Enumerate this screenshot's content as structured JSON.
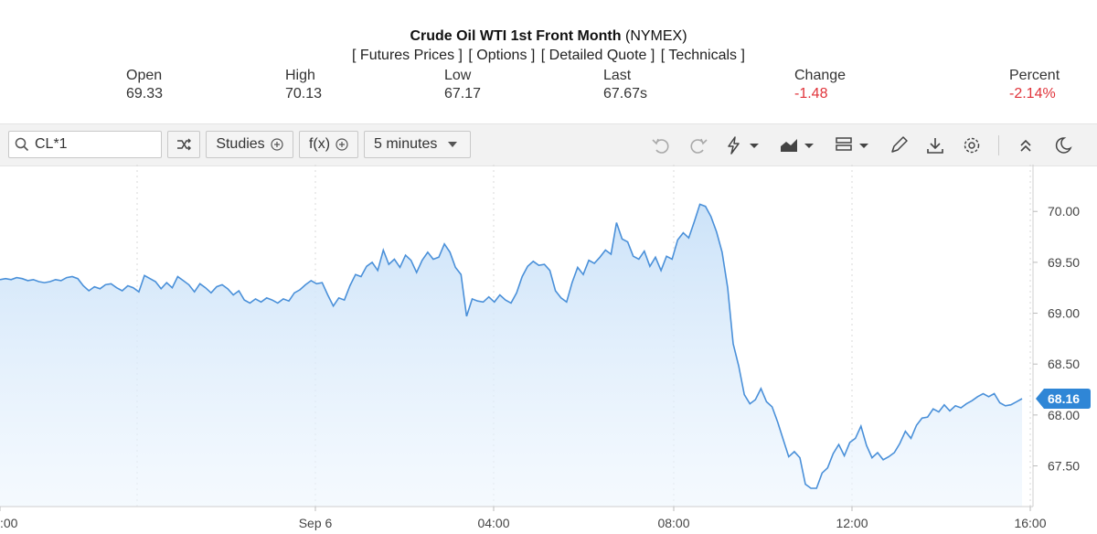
{
  "header": {
    "title_bold": "Crude Oil WTI 1st Front Month",
    "title_exchange": "(NYMEX)",
    "links": [
      "[ Futures Prices ]",
      "[ Options ]",
      "[ Detailed Quote ]",
      "[ Technicals ]"
    ]
  },
  "stats": {
    "open": {
      "label": "Open",
      "value": "69.33"
    },
    "high": {
      "label": "High",
      "value": "70.13"
    },
    "low": {
      "label": "Low",
      "value": "67.17"
    },
    "last": {
      "label": "Last",
      "value": "67.67s"
    },
    "change": {
      "label": "Change",
      "value": "-1.48"
    },
    "percent": {
      "label": "Percent",
      "value": "-2.14%"
    }
  },
  "toolbar": {
    "symbol": "CL*1",
    "studies_label": "Studies",
    "fx_label": "f(x)",
    "interval_label": "5 minutes"
  },
  "colors": {
    "negative": "#e0333a",
    "line": "#4a90d9",
    "badge": "#2f86d6",
    "fill_top": "#c9e1f8"
  },
  "chart_data": {
    "type": "area",
    "x_tick_labels": [
      ":00",
      "Sep 6",
      "04:00",
      "08:00",
      "12:00",
      "16:00"
    ],
    "y_tick_labels": [
      "70.00",
      "69.50",
      "69.00",
      "68.50",
      "68.00",
      "67.50"
    ],
    "ylim": [
      67.1,
      70.3
    ],
    "grid": true,
    "last_value_label": "68.16",
    "series": [
      {
        "y": [
          69.33,
          69.34,
          69.33,
          69.35,
          69.34,
          69.32,
          69.33,
          69.31,
          69.3,
          69.31,
          69.33,
          69.32,
          69.35,
          69.36,
          69.34,
          69.27,
          69.22,
          69.26,
          69.24,
          69.28,
          69.29,
          69.25,
          69.22,
          69.27,
          69.25,
          69.21,
          69.37,
          69.34,
          69.31,
          69.24,
          69.3,
          69.25,
          69.36,
          69.32,
          69.28,
          69.21,
          69.29,
          69.25,
          69.2,
          69.26,
          69.28,
          69.24,
          69.18,
          69.22,
          69.13,
          69.1,
          69.14,
          69.11,
          69.15,
          69.13,
          69.1,
          69.14,
          69.12,
          69.2,
          69.23,
          69.28,
          69.32,
          69.29,
          69.3,
          69.18,
          69.07,
          69.15,
          69.13,
          69.27,
          69.38,
          69.36,
          69.46,
          69.5,
          69.42,
          69.62,
          69.48,
          69.53,
          69.45,
          69.57,
          69.52,
          69.4,
          69.52,
          69.6,
          69.53,
          69.55,
          69.68,
          69.6,
          69.45,
          69.38,
          68.97,
          69.14,
          69.12,
          69.11,
          69.16,
          69.11,
          69.18,
          69.13,
          69.1,
          69.2,
          69.36,
          69.46,
          69.51,
          69.47,
          69.48,
          69.42,
          69.22,
          69.15,
          69.11,
          69.3,
          69.45,
          69.38,
          69.52,
          69.49,
          69.55,
          69.62,
          69.58,
          69.89,
          69.73,
          69.7,
          69.56,
          69.53,
          69.61,
          69.46,
          69.55,
          69.42,
          69.56,
          69.53,
          69.72,
          69.79,
          69.74,
          69.9,
          70.07,
          70.05,
          69.95,
          69.8,
          69.6,
          69.25,
          68.7,
          68.48,
          68.2,
          68.11,
          68.15,
          68.26,
          68.13,
          68.08,
          67.93,
          67.76,
          67.59,
          67.64,
          67.58,
          67.32,
          67.28,
          67.28,
          67.43,
          67.48,
          67.62,
          67.71,
          67.6,
          67.73,
          67.77,
          67.89,
          67.7,
          67.58,
          67.63,
          67.56,
          67.59,
          67.63,
          67.72,
          67.84,
          67.77,
          67.9,
          67.97,
          67.98,
          68.06,
          68.03,
          68.1,
          68.04,
          68.09,
          68.07,
          68.11,
          68.14,
          68.18,
          68.21,
          68.18,
          68.21,
          68.12,
          68.09,
          68.1,
          68.13,
          68.16
        ]
      }
    ]
  }
}
